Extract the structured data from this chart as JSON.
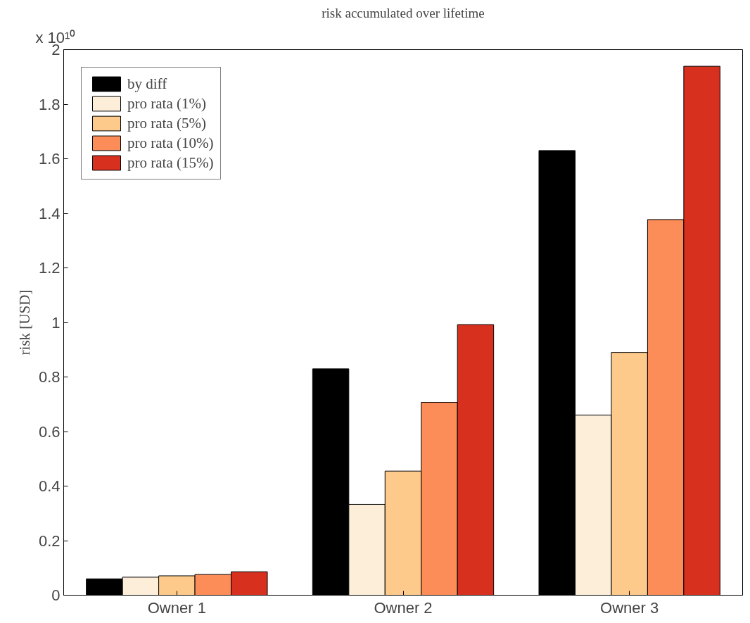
{
  "chart_data": {
    "type": "bar",
    "title": "risk accumulated over lifetime",
    "ylabel": "risk [USD]",
    "annotations": [
      "x 10¹⁰"
    ],
    "categories": [
      "Owner 1",
      "Owner 2",
      "Owner 3"
    ],
    "series": [
      {
        "name": "by diff",
        "color": "#000000",
        "values": [
          0.06,
          0.83,
          1.63
        ]
      },
      {
        "name": "pro rata (1%)",
        "color": "#fdeed9",
        "values": [
          0.066,
          0.333,
          0.66
        ]
      },
      {
        "name": "pro rata (5%)",
        "color": "#fdca8c",
        "values": [
          0.071,
          0.455,
          0.89
        ]
      },
      {
        "name": "pro rata (10%)",
        "color": "#fc8d59",
        "values": [
          0.076,
          0.707,
          1.377
        ]
      },
      {
        "name": "pro rata (15%)",
        "color": "#d7301f",
        "values": [
          0.086,
          0.992,
          1.939
        ]
      }
    ],
    "ylim": [
      0,
      2
    ],
    "yticks": [
      0,
      0.2,
      0.4,
      0.6,
      0.8,
      1,
      1.2,
      1.4,
      1.6,
      1.8,
      2
    ],
    "grid": false,
    "legend": "top left"
  }
}
